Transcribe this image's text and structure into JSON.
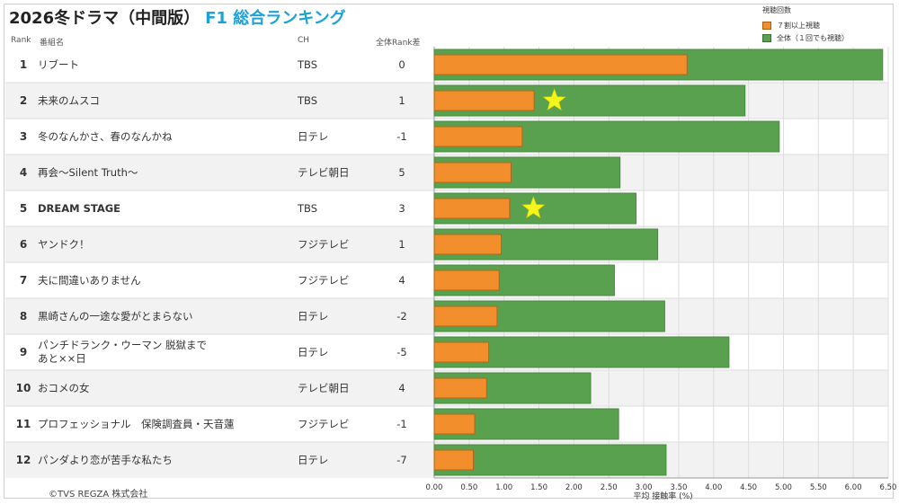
{
  "title": {
    "main": "2026冬ドラマ（中間版）",
    "highlight": "F1 総合ランキング"
  },
  "table_header": {
    "rank": "Rank",
    "name": "番組名",
    "channel": "CH",
    "diff": "全体Rank差"
  },
  "footer": "©TVS REGZA 株式会社",
  "colors": {
    "orange": "#f28e2b",
    "green": "#59a14f",
    "star": "#f5f51c",
    "title_accent": "#1aa3d9"
  },
  "chart_data": {
    "type": "bar",
    "orientation": "horizontal",
    "legend_title": "視聴回数",
    "xlabel": "平均 接触率 (%)",
    "xlim": [
      0,
      6.5
    ],
    "xticks": [
      "0.00",
      "0.50",
      "1.00",
      "1.50",
      "2.00",
      "2.50",
      "3.00",
      "3.50",
      "4.00",
      "4.50",
      "5.00",
      "5.50",
      "6.00",
      "6.50"
    ],
    "legend_placement": "top-right",
    "series": [
      {
        "name": "全体（１回でも視聴）",
        "color": "#59a14f",
        "values": [
          6.42,
          4.45,
          4.94,
          2.66,
          2.89,
          3.2,
          2.58,
          3.3,
          4.22,
          2.24,
          2.64,
          3.32
        ]
      },
      {
        "name": "７割以上視聴",
        "color": "#f28e2b",
        "values": [
          3.62,
          1.43,
          1.26,
          1.1,
          1.08,
          0.96,
          0.93,
          0.9,
          0.78,
          0.75,
          0.58,
          0.56
        ]
      }
    ],
    "stars": [
      {
        "row": 2,
        "x": 1.72
      },
      {
        "row": 5,
        "x": 1.42
      }
    ],
    "rows": [
      {
        "rank": "1",
        "name": "リブート",
        "channel": "TBS",
        "diff": "0"
      },
      {
        "rank": "2",
        "name": "未来のムスコ",
        "channel": "TBS",
        "diff": "1"
      },
      {
        "rank": "3",
        "name": "冬のなんかさ、春のなんかね",
        "channel": "日テレ",
        "diff": "-1"
      },
      {
        "rank": "4",
        "name": "再会～Silent Truth～",
        "channel": "テレビ朝日",
        "diff": "5"
      },
      {
        "rank": "5",
        "name": "DREAM STAGE",
        "channel": "TBS",
        "diff": "3"
      },
      {
        "rank": "6",
        "name": "ヤンドク！",
        "channel": "フジテレビ",
        "diff": "1"
      },
      {
        "rank": "7",
        "name": "夫に間違いありません",
        "channel": "フジテレビ",
        "diff": "4"
      },
      {
        "rank": "8",
        "name": "黒崎さんの一途な愛がとまらない",
        "channel": "日テレ",
        "diff": "-2"
      },
      {
        "rank": "9",
        "name": "パンチドランク・ウーマン 脱獄まであと××日",
        "channel": "日テレ",
        "diff": "-5"
      },
      {
        "rank": "10",
        "name": "おコメの女",
        "channel": "テレビ朝日",
        "diff": "4"
      },
      {
        "rank": "11",
        "name": "プロフェッショナル　保険調査員・天音蓮",
        "channel": "フジテレビ",
        "diff": "-1"
      },
      {
        "rank": "12",
        "name": "パンダより恋が苦手な私たち",
        "channel": "日テレ",
        "diff": "-7"
      }
    ]
  }
}
